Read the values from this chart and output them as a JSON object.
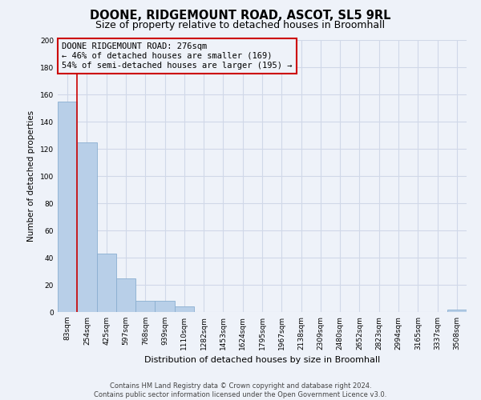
{
  "title": "DOONE, RIDGEMOUNT ROAD, ASCOT, SL5 9RL",
  "subtitle": "Size of property relative to detached houses in Broomhall",
  "bar_values": [
    155,
    125,
    43,
    25,
    8,
    8,
    4,
    0,
    0,
    0,
    0,
    0,
    0,
    0,
    0,
    0,
    0,
    0,
    0,
    0,
    2
  ],
  "bin_labels": [
    "83sqm",
    "254sqm",
    "425sqm",
    "597sqm",
    "768sqm",
    "939sqm",
    "1110sqm",
    "1282sqm",
    "1453sqm",
    "1624sqm",
    "1795sqm",
    "1967sqm",
    "2138sqm",
    "2309sqm",
    "2480sqm",
    "2652sqm",
    "2823sqm",
    "2994sqm",
    "3165sqm",
    "3337sqm",
    "3508sqm"
  ],
  "bar_color": "#b8cfe8",
  "bar_edge_color": "#8aaed0",
  "vline_color": "#cc0000",
  "vline_pos": 0.5,
  "ylabel": "Number of detached properties",
  "xlabel": "Distribution of detached houses by size in Broomhall",
  "ylim": [
    0,
    200
  ],
  "yticks": [
    0,
    20,
    40,
    60,
    80,
    100,
    120,
    140,
    160,
    180,
    200
  ],
  "annotation_title": "DOONE RIDGEMOUNT ROAD: 276sqm",
  "annotation_line1": "← 46% of detached houses are smaller (169)",
  "annotation_line2": "54% of semi-detached houses are larger (195) →",
  "footer_line1": "Contains HM Land Registry data © Crown copyright and database right 2024.",
  "footer_line2": "Contains public sector information licensed under the Open Government Licence v3.0.",
  "background_color": "#eef2f9",
  "grid_color": "#d0d8e8",
  "title_fontsize": 10.5,
  "subtitle_fontsize": 9
}
